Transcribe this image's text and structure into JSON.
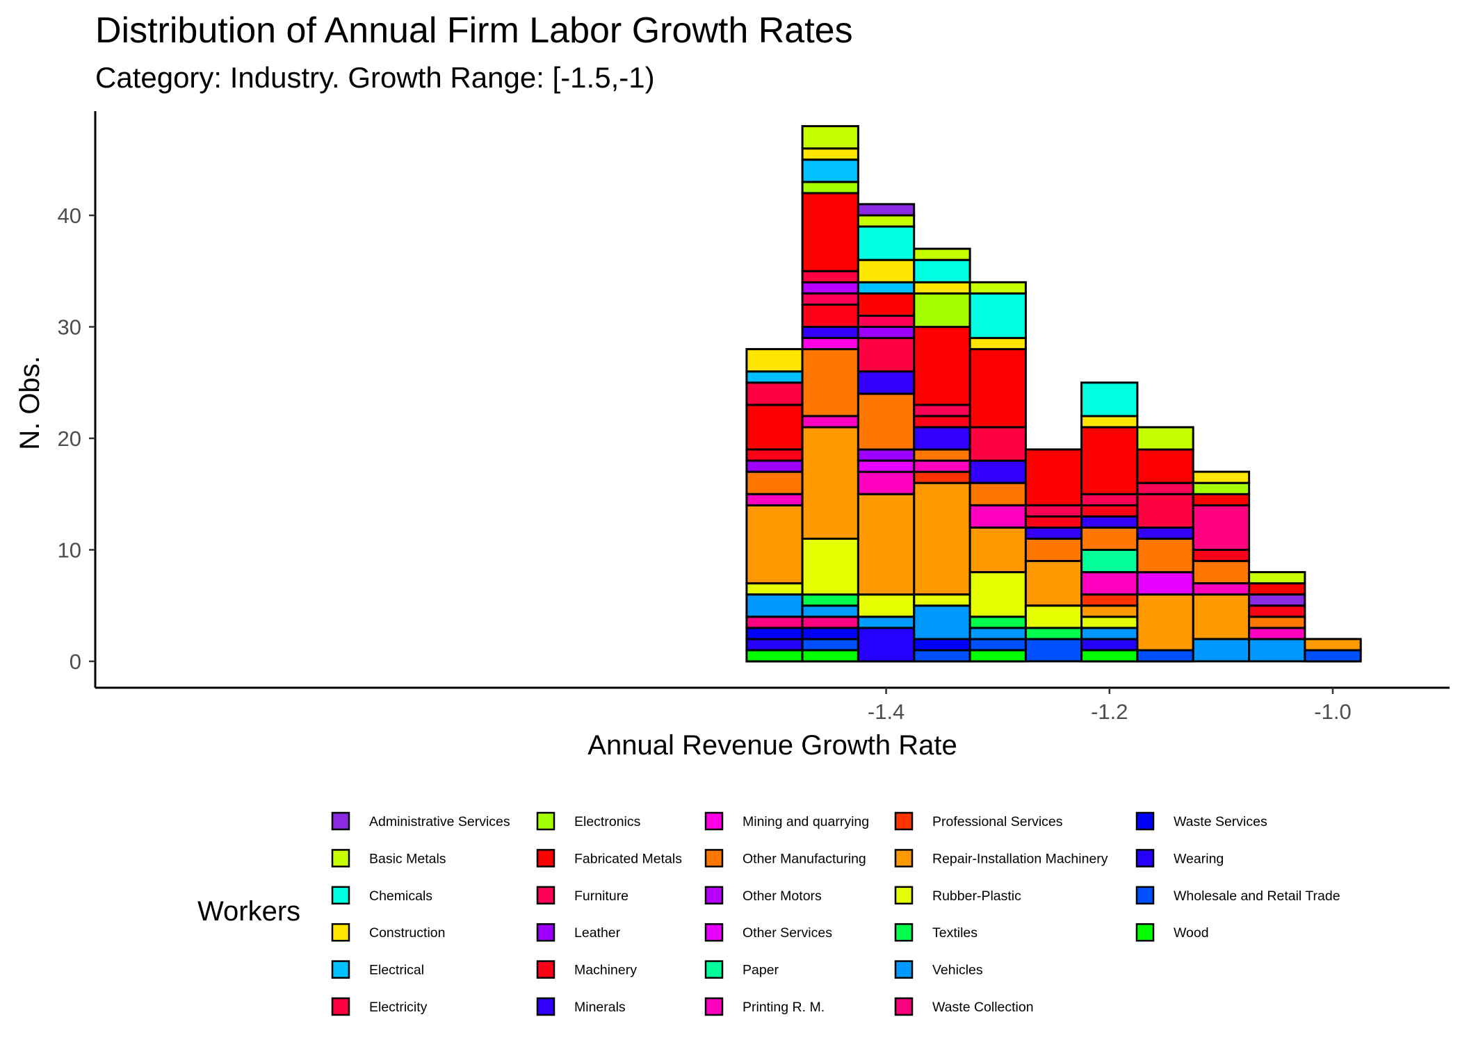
{
  "chart_data": {
    "type": "bar",
    "stacked": true,
    "title": "Distribution of Annual Firm Labor Growth Rates",
    "subtitle": "Category: Industry. Growth Range: [-1.5,-1)",
    "xlabel": "Annual Revenue Growth Rate",
    "ylabel": "N. Obs.",
    "xlim": [
      -1.5,
      -1.0
    ],
    "ylim": [
      0,
      47
    ],
    "xticks": [
      -1.4,
      -1.2,
      -1.0
    ],
    "xtick_labels": [
      "-1.4",
      "-1.2",
      "-1.0"
    ],
    "yticks": [
      0,
      10,
      20,
      30,
      40
    ],
    "ytick_labels": [
      "0",
      "10",
      "20",
      "30",
      "40"
    ],
    "grid": false,
    "legend_title": "Workers",
    "legend_position": "bottom",
    "bins": [
      {
        "x_start": -1.525,
        "x_end": -1.475,
        "segments": [
          {
            "industry": "Wood",
            "count": 1
          },
          {
            "industry": "Wearing",
            "count": 1
          },
          {
            "industry": "Waste Services",
            "count": 1
          },
          {
            "industry": "Waste Collection",
            "count": 1
          },
          {
            "industry": "Vehicles",
            "count": 2
          },
          {
            "industry": "Rubber-Plastic",
            "count": 1
          },
          {
            "industry": "Repair-Installation Machinery",
            "count": 7
          },
          {
            "industry": "Printing R. M.",
            "count": 1
          },
          {
            "industry": "Other Manufacturing",
            "count": 2
          },
          {
            "industry": "Leather",
            "count": 1
          },
          {
            "industry": "Machinery",
            "count": 1
          },
          {
            "industry": "Fabricated Metals",
            "count": 4
          },
          {
            "industry": "Electricity",
            "count": 2
          },
          {
            "industry": "Electrical",
            "count": 1
          },
          {
            "industry": "Construction",
            "count": 2
          }
        ]
      },
      {
        "x_start": -1.475,
        "x_end": -1.425,
        "segments": [
          {
            "industry": "Wood",
            "count": 1
          },
          {
            "industry": "Wholesale and Retail Trade",
            "count": 1
          },
          {
            "industry": "Waste Services",
            "count": 1
          },
          {
            "industry": "Waste Collection",
            "count": 1
          },
          {
            "industry": "Vehicles",
            "count": 1
          },
          {
            "industry": "Textiles",
            "count": 1
          },
          {
            "industry": "Rubber-Plastic",
            "count": 5
          },
          {
            "industry": "Repair-Installation Machinery",
            "count": 10
          },
          {
            "industry": "Printing R. M.",
            "count": 1
          },
          {
            "industry": "Other Manufacturing",
            "count": 6
          },
          {
            "industry": "Mining and quarrying",
            "count": 1
          },
          {
            "industry": "Minerals",
            "count": 1
          },
          {
            "industry": "Machinery",
            "count": 2
          },
          {
            "industry": "Furniture",
            "count": 1
          },
          {
            "industry": "Other Motors",
            "count": 1
          },
          {
            "industry": "Electricity",
            "count": 1
          },
          {
            "industry": "Fabricated Metals",
            "count": 7
          },
          {
            "industry": "Electronics",
            "count": 1
          },
          {
            "industry": "Electrical",
            "count": 2
          },
          {
            "industry": "Construction",
            "count": 1
          },
          {
            "industry": "Basic Metals",
            "count": 2
          }
        ]
      },
      {
        "x_start": -1.425,
        "x_end": -1.375,
        "segments": [
          {
            "industry": "Wearing",
            "count": 3
          },
          {
            "industry": "Vehicles",
            "count": 1
          },
          {
            "industry": "Rubber-Plastic",
            "count": 2
          },
          {
            "industry": "Repair-Installation Machinery",
            "count": 9
          },
          {
            "industry": "Printing R. M.",
            "count": 2
          },
          {
            "industry": "Other Services",
            "count": 1
          },
          {
            "industry": "Leather",
            "count": 1
          },
          {
            "industry": "Other Manufacturing",
            "count": 5
          },
          {
            "industry": "Minerals",
            "count": 2
          },
          {
            "industry": "Electricity",
            "count": 3
          },
          {
            "industry": "Leather",
            "count": 1
          },
          {
            "industry": "Furniture",
            "count": 1
          },
          {
            "industry": "Fabricated Metals",
            "count": 2
          },
          {
            "industry": "Electrical",
            "count": 1
          },
          {
            "industry": "Construction",
            "count": 2
          },
          {
            "industry": "Chemicals",
            "count": 3
          },
          {
            "industry": "Basic Metals",
            "count": 1
          },
          {
            "industry": "Administrative Services",
            "count": 1
          }
        ]
      },
      {
        "x_start": -1.375,
        "x_end": -1.325,
        "segments": [
          {
            "industry": "Wholesale and Retail Trade",
            "count": 1
          },
          {
            "industry": "Waste Services",
            "count": 1
          },
          {
            "industry": "Vehicles",
            "count": 3
          },
          {
            "industry": "Rubber-Plastic",
            "count": 1
          },
          {
            "industry": "Repair-Installation Machinery",
            "count": 10
          },
          {
            "industry": "Professional Services",
            "count": 1
          },
          {
            "industry": "Printing R. M.",
            "count": 1
          },
          {
            "industry": "Other Manufacturing",
            "count": 1
          },
          {
            "industry": "Minerals",
            "count": 2
          },
          {
            "industry": "Machinery",
            "count": 1
          },
          {
            "industry": "Furniture",
            "count": 1
          },
          {
            "industry": "Fabricated Metals",
            "count": 7
          },
          {
            "industry": "Electronics",
            "count": 3
          },
          {
            "industry": "Construction",
            "count": 1
          },
          {
            "industry": "Chemicals",
            "count": 2
          },
          {
            "industry": "Basic Metals",
            "count": 1
          }
        ]
      },
      {
        "x_start": -1.325,
        "x_end": -1.275,
        "segments": [
          {
            "industry": "Wood",
            "count": 1
          },
          {
            "industry": "Wholesale and Retail Trade",
            "count": 1
          },
          {
            "industry": "Vehicles",
            "count": 1
          },
          {
            "industry": "Textiles",
            "count": 1
          },
          {
            "industry": "Rubber-Plastic",
            "count": 4
          },
          {
            "industry": "Repair-Installation Machinery",
            "count": 4
          },
          {
            "industry": "Printing R. M.",
            "count": 2
          },
          {
            "industry": "Other Manufacturing",
            "count": 2
          },
          {
            "industry": "Minerals",
            "count": 2
          },
          {
            "industry": "Electricity",
            "count": 3
          },
          {
            "industry": "Fabricated Metals",
            "count": 7
          },
          {
            "industry": "Construction",
            "count": 1
          },
          {
            "industry": "Chemicals",
            "count": 4
          },
          {
            "industry": "Basic Metals",
            "count": 1
          }
        ]
      },
      {
        "x_start": -1.275,
        "x_end": -1.225,
        "segments": [
          {
            "industry": "Wholesale and Retail Trade",
            "count": 2
          },
          {
            "industry": "Textiles",
            "count": 1
          },
          {
            "industry": "Rubber-Plastic",
            "count": 2
          },
          {
            "industry": "Repair-Installation Machinery",
            "count": 4
          },
          {
            "industry": "Other Manufacturing",
            "count": 2
          },
          {
            "industry": "Minerals",
            "count": 1
          },
          {
            "industry": "Machinery",
            "count": 1
          },
          {
            "industry": "Furniture",
            "count": 1
          },
          {
            "industry": "Fabricated Metals",
            "count": 5
          }
        ]
      },
      {
        "x_start": -1.225,
        "x_end": -1.175,
        "segments": [
          {
            "industry": "Wood",
            "count": 1
          },
          {
            "industry": "Wearing",
            "count": 1
          },
          {
            "industry": "Vehicles",
            "count": 1
          },
          {
            "industry": "Rubber-Plastic",
            "count": 1
          },
          {
            "industry": "Repair-Installation Machinery",
            "count": 1
          },
          {
            "industry": "Professional Services",
            "count": 1
          },
          {
            "industry": "Printing R. M.",
            "count": 2
          },
          {
            "industry": "Paper",
            "count": 2
          },
          {
            "industry": "Other Manufacturing",
            "count": 2
          },
          {
            "industry": "Minerals",
            "count": 1
          },
          {
            "industry": "Machinery",
            "count": 1
          },
          {
            "industry": "Furniture",
            "count": 1
          },
          {
            "industry": "Fabricated Metals",
            "count": 6
          },
          {
            "industry": "Construction",
            "count": 1
          },
          {
            "industry": "Chemicals",
            "count": 3
          }
        ]
      },
      {
        "x_start": -1.175,
        "x_end": -1.125,
        "segments": [
          {
            "industry": "Wholesale and Retail Trade",
            "count": 1
          },
          {
            "industry": "Repair-Installation Machinery",
            "count": 5
          },
          {
            "industry": "Other Services",
            "count": 2
          },
          {
            "industry": "Other Manufacturing",
            "count": 3
          },
          {
            "industry": "Minerals",
            "count": 1
          },
          {
            "industry": "Electricity",
            "count": 3
          },
          {
            "industry": "Furniture",
            "count": 1
          },
          {
            "industry": "Fabricated Metals",
            "count": 3
          },
          {
            "industry": "Basic Metals",
            "count": 2
          }
        ]
      },
      {
        "x_start": -1.125,
        "x_end": -1.075,
        "segments": [
          {
            "industry": "Vehicles",
            "count": 2
          },
          {
            "industry": "Repair-Installation Machinery",
            "count": 4
          },
          {
            "industry": "Printing R. M.",
            "count": 1
          },
          {
            "industry": "Other Manufacturing",
            "count": 2
          },
          {
            "industry": "Machinery",
            "count": 1
          },
          {
            "industry": "Waste Collection",
            "count": 4
          },
          {
            "industry": "Fabricated Metals",
            "count": 1
          },
          {
            "industry": "Electronics",
            "count": 1
          },
          {
            "industry": "Construction",
            "count": 1
          }
        ]
      },
      {
        "x_start": -1.075,
        "x_end": -1.025,
        "segments": [
          {
            "industry": "Vehicles",
            "count": 2
          },
          {
            "industry": "Printing R. M.",
            "count": 1
          },
          {
            "industry": "Other Manufacturing",
            "count": 1
          },
          {
            "industry": "Machinery",
            "count": 1
          },
          {
            "industry": "Administrative Services",
            "count": 1
          },
          {
            "industry": "Fabricated Metals",
            "count": 1
          },
          {
            "industry": "Basic Metals",
            "count": 1
          }
        ]
      },
      {
        "x_start": -1.025,
        "x_end": -0.975,
        "segments": [
          {
            "industry": "Wholesale and Retail Trade",
            "count": 1
          },
          {
            "industry": "Repair-Installation Machinery",
            "count": 1
          }
        ]
      }
    ],
    "legend": [
      {
        "label": "Administrative Services",
        "color": "#8A2BE2"
      },
      {
        "label": "Basic Metals",
        "color": "#C8FF00"
      },
      {
        "label": "Chemicals",
        "color": "#00FFE1"
      },
      {
        "label": "Construction",
        "color": "#FFE600"
      },
      {
        "label": "Electrical",
        "color": "#00C0FF"
      },
      {
        "label": "Electricity",
        "color": "#FF0040"
      },
      {
        "label": "Electronics",
        "color": "#A6FF00"
      },
      {
        "label": "Fabricated Metals",
        "color": "#FF0000"
      },
      {
        "label": "Furniture",
        "color": "#FF0055"
      },
      {
        "label": "Leather",
        "color": "#9E00FF"
      },
      {
        "label": "Machinery",
        "color": "#FF0019"
      },
      {
        "label": "Minerals",
        "color": "#3300FF"
      },
      {
        "label": "Mining and quarrying",
        "color": "#FF00E6"
      },
      {
        "label": "Other Manufacturing",
        "color": "#FF7700"
      },
      {
        "label": "Other Motors",
        "color": "#B700FF"
      },
      {
        "label": "Other Services",
        "color": "#E600FF"
      },
      {
        "label": "Paper",
        "color": "#00FF99"
      },
      {
        "label": "Printing R. M.",
        "color": "#FF00BF"
      },
      {
        "label": "Professional Services",
        "color": "#FF3300"
      },
      {
        "label": "Repair-Installation Machinery",
        "color": "#FF9900"
      },
      {
        "label": "Rubber-Plastic",
        "color": "#E6FF00"
      },
      {
        "label": "Textiles",
        "color": "#00FF4D"
      },
      {
        "label": "Vehicles",
        "color": "#0099FF"
      },
      {
        "label": "Waste Collection",
        "color": "#FF0080"
      },
      {
        "label": "Waste Services",
        "color": "#0000FF"
      },
      {
        "label": "Wearing",
        "color": "#2600FF"
      },
      {
        "label": "Wholesale and Retail Trade",
        "color": "#0050FF"
      },
      {
        "label": "Wood",
        "color": "#00FF00"
      }
    ]
  }
}
